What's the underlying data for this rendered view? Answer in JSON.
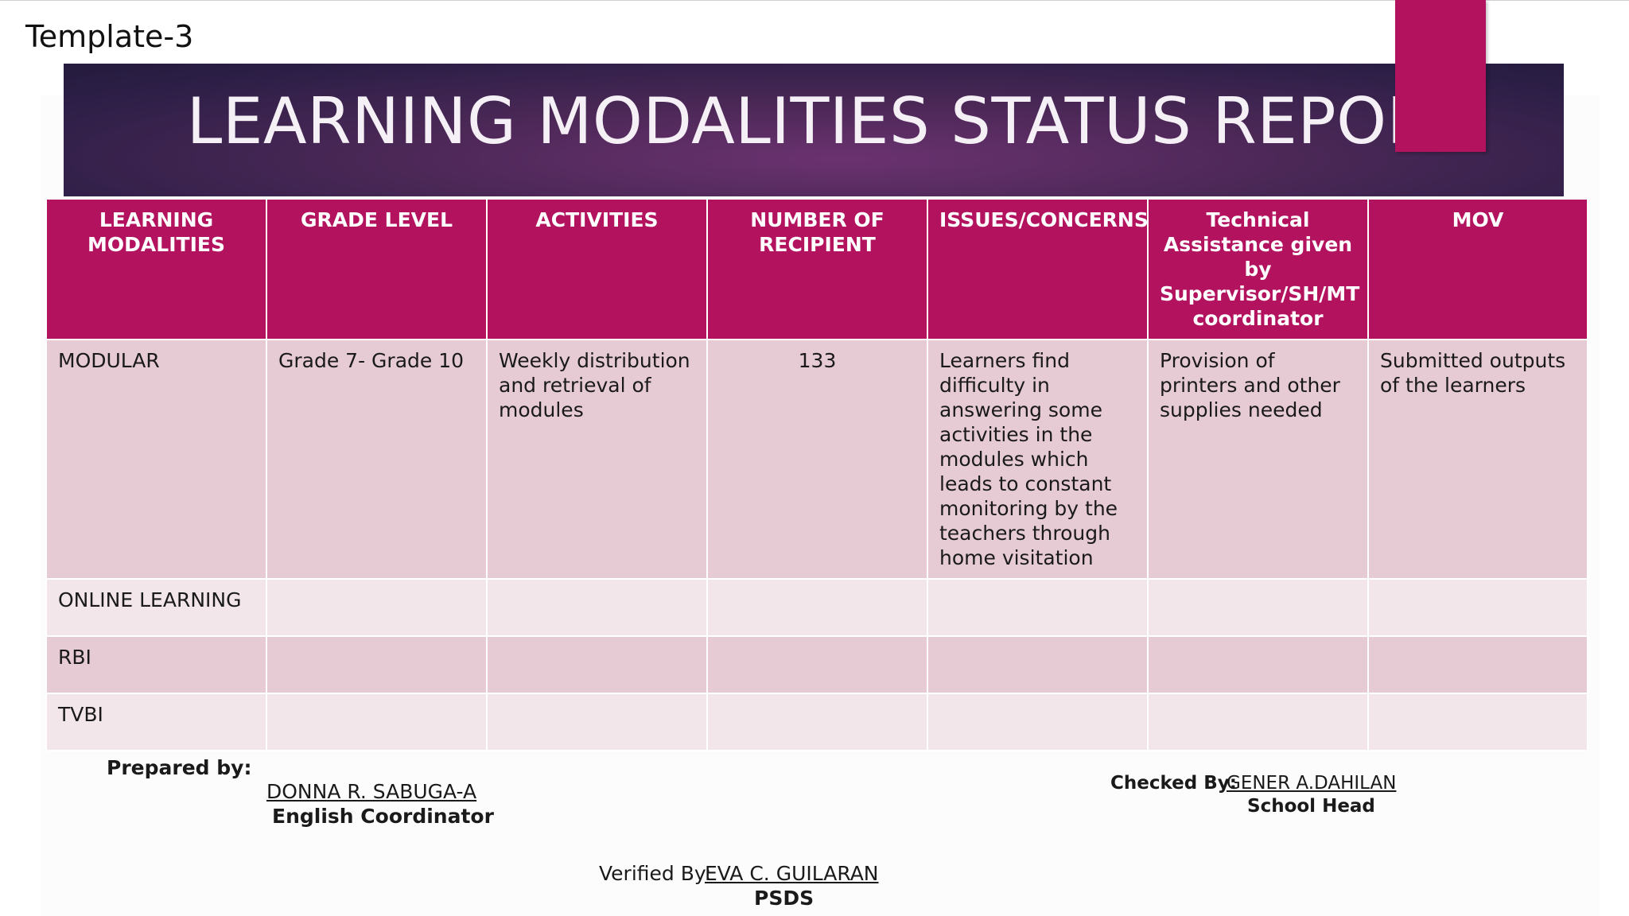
{
  "template_label": "Template-3",
  "title": "LEARNING MODALITIES STATUS REPORT",
  "colors": {
    "accent": "#b3125f",
    "banner": "#3a2350",
    "row_dark": "#e6cbd5",
    "row_light": "#f2e6eb"
  },
  "table": {
    "headers": [
      "LEARNING MODALITIES",
      "GRADE LEVEL",
      "ACTIVITIES",
      "NUMBER OF RECIPIENT",
      "ISSUES/CONCERNS",
      "Technical Assistance given by Supervisor/SH/MT coordinator",
      "MOV"
    ],
    "rows": [
      [
        "MODULAR",
        "Grade 7- Grade 10",
        "Weekly distribution and retrieval of modules",
        "133",
        "Learners find difficulty in answering some activities in the modules which leads to constant monitoring by the teachers through home visitation",
        "Provision of printers and other supplies needed",
        "Submitted outputs of the learners"
      ],
      [
        "ONLINE LEARNING",
        "",
        "",
        "",
        "",
        "",
        ""
      ],
      [
        "RBI",
        "",
        "",
        "",
        "",
        "",
        ""
      ],
      [
        "TVBI",
        "",
        "",
        "",
        "",
        "",
        ""
      ]
    ]
  },
  "footer": {
    "prepared_label": "Prepared by:",
    "prepared_name": "DONNA R. SABUGA-A",
    "prepared_role": "English Coordinator",
    "checked_label": "Checked By:",
    "checked_name": "GENER A.DAHILAN",
    "checked_role": "School Head",
    "verified_label": "Verified By:",
    "verified_name": "EVA C. GUILARAN",
    "verified_role": "PSDS"
  }
}
